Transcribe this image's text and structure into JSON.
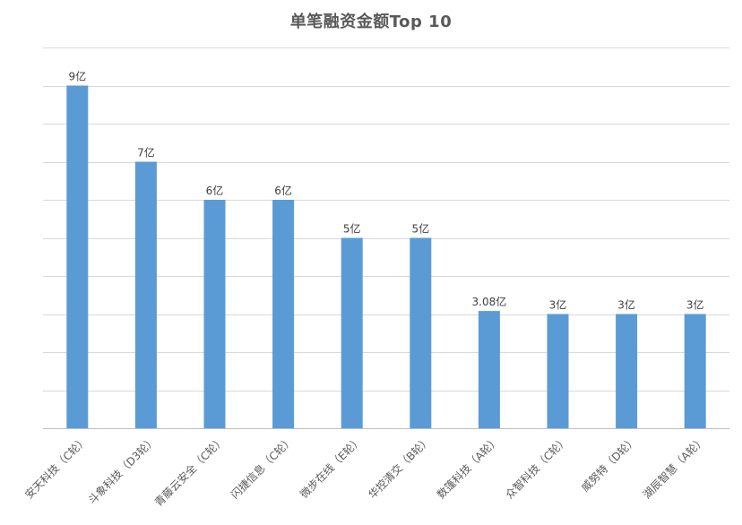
{
  "chart_data": {
    "type": "bar",
    "title": "单笔融资金额Top 10",
    "xlabel": "",
    "ylabel": "",
    "ylim": [
      0,
      10
    ],
    "grid": true,
    "bar_color": "#5b9bd5",
    "categories": [
      "安天科技（C轮）",
      "斗象科技（D3轮）",
      "青藤云安全（C轮）",
      "闪捷信息（C轮）",
      "微步在线（E轮）",
      "华控清交（B轮）",
      "数篷科技（A轮）",
      "众智科技（C轮）",
      "威努特（D轮）",
      "湖辰智慧（A轮）"
    ],
    "values": [
      9,
      7,
      6,
      6,
      5,
      5,
      3.08,
      3,
      3,
      3
    ],
    "data_labels": [
      "9亿",
      "7亿",
      "6亿",
      "6亿",
      "5亿",
      "5亿",
      "3.08亿",
      "3亿",
      "3亿",
      "3亿"
    ]
  }
}
